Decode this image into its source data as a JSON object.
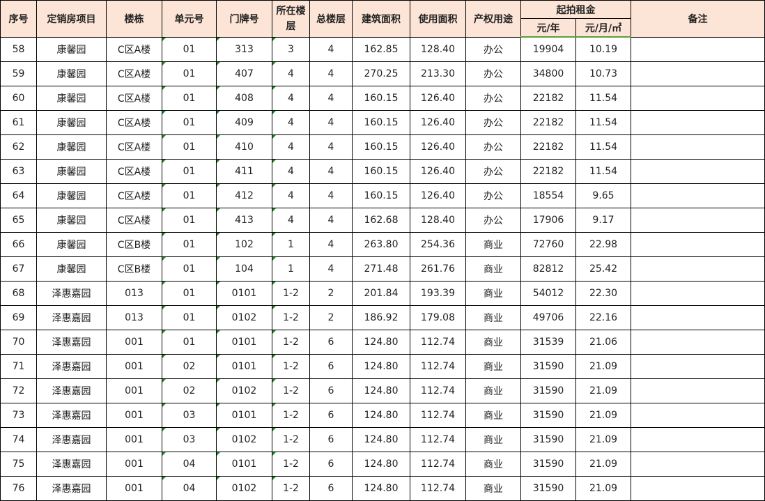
{
  "headers": {
    "seq": "序号",
    "project": "定销房项目",
    "building": "楼栋",
    "unit": "单元号",
    "door": "门牌号",
    "floor": "所在楼层",
    "total_floors": "总楼层",
    "build_area": "建筑面积",
    "use_area": "使用面积",
    "usage": "产权用途",
    "rent": "起拍租金",
    "rent_year": "元/年",
    "rent_month": "元/月/㎡",
    "remark": "备注"
  },
  "rows": [
    [
      "58",
      "康馨园",
      "C区A楼",
      "01",
      "313",
      "3",
      "4",
      "162.85",
      "128.40",
      "办公",
      "19904",
      "10.19"
    ],
    [
      "59",
      "康馨园",
      "C区A楼",
      "01",
      "407",
      "4",
      "4",
      "270.25",
      "213.30",
      "办公",
      "34800",
      "10.73"
    ],
    [
      "60",
      "康馨园",
      "C区A楼",
      "01",
      "408",
      "4",
      "4",
      "160.15",
      "126.40",
      "办公",
      "22182",
      "11.54"
    ],
    [
      "61",
      "康馨园",
      "C区A楼",
      "01",
      "409",
      "4",
      "4",
      "160.15",
      "126.40",
      "办公",
      "22182",
      "11.54"
    ],
    [
      "62",
      "康馨园",
      "C区A楼",
      "01",
      "410",
      "4",
      "4",
      "160.15",
      "126.40",
      "办公",
      "22182",
      "11.54"
    ],
    [
      "63",
      "康馨园",
      "C区A楼",
      "01",
      "411",
      "4",
      "4",
      "160.15",
      "126.40",
      "办公",
      "22182",
      "11.54"
    ],
    [
      "64",
      "康馨园",
      "C区A楼",
      "01",
      "412",
      "4",
      "4",
      "160.15",
      "126.40",
      "办公",
      "18554",
      "9.65"
    ],
    [
      "65",
      "康馨园",
      "C区A楼",
      "01",
      "413",
      "4",
      "4",
      "162.68",
      "128.40",
      "办公",
      "17906",
      "9.17"
    ],
    [
      "66",
      "康馨园",
      "C区B楼",
      "01",
      "102",
      "1",
      "4",
      "263.80",
      "254.36",
      "商业",
      "72760",
      "22.98"
    ],
    [
      "67",
      "康馨园",
      "C区B楼",
      "01",
      "104",
      "1",
      "4",
      "271.48",
      "261.76",
      "商业",
      "82812",
      "25.42"
    ],
    [
      "68",
      "泽惠嘉园",
      "013",
      "01",
      "0101",
      "1-2",
      "2",
      "201.84",
      "193.39",
      "商业",
      "54012",
      "22.30"
    ],
    [
      "69",
      "泽惠嘉园",
      "013",
      "01",
      "0102",
      "1-2",
      "2",
      "186.92",
      "179.08",
      "商业",
      "49706",
      "22.16"
    ],
    [
      "70",
      "泽惠嘉园",
      "001",
      "01",
      "0101",
      "1-2",
      "6",
      "124.80",
      "112.74",
      "商业",
      "31539",
      "21.06"
    ],
    [
      "71",
      "泽惠嘉园",
      "001",
      "02",
      "0101",
      "1-2",
      "6",
      "124.80",
      "112.74",
      "商业",
      "31590",
      "21.09"
    ],
    [
      "72",
      "泽惠嘉园",
      "001",
      "02",
      "0102",
      "1-2",
      "6",
      "124.80",
      "112.74",
      "商业",
      "31590",
      "21.09"
    ],
    [
      "73",
      "泽惠嘉园",
      "001",
      "03",
      "0101",
      "1-2",
      "6",
      "124.80",
      "112.74",
      "商业",
      "31590",
      "21.09"
    ],
    [
      "74",
      "泽惠嘉园",
      "001",
      "03",
      "0102",
      "1-2",
      "6",
      "124.80",
      "112.74",
      "商业",
      "31590",
      "21.09"
    ],
    [
      "75",
      "泽惠嘉园",
      "001",
      "04",
      "0101",
      "1-2",
      "6",
      "124.80",
      "112.74",
      "商业",
      "31590",
      "21.09"
    ],
    [
      "76",
      "泽惠嘉园",
      "001",
      "04",
      "0102",
      "1-2",
      "6",
      "124.80",
      "112.74",
      "商业",
      "31590",
      "21.09"
    ]
  ]
}
